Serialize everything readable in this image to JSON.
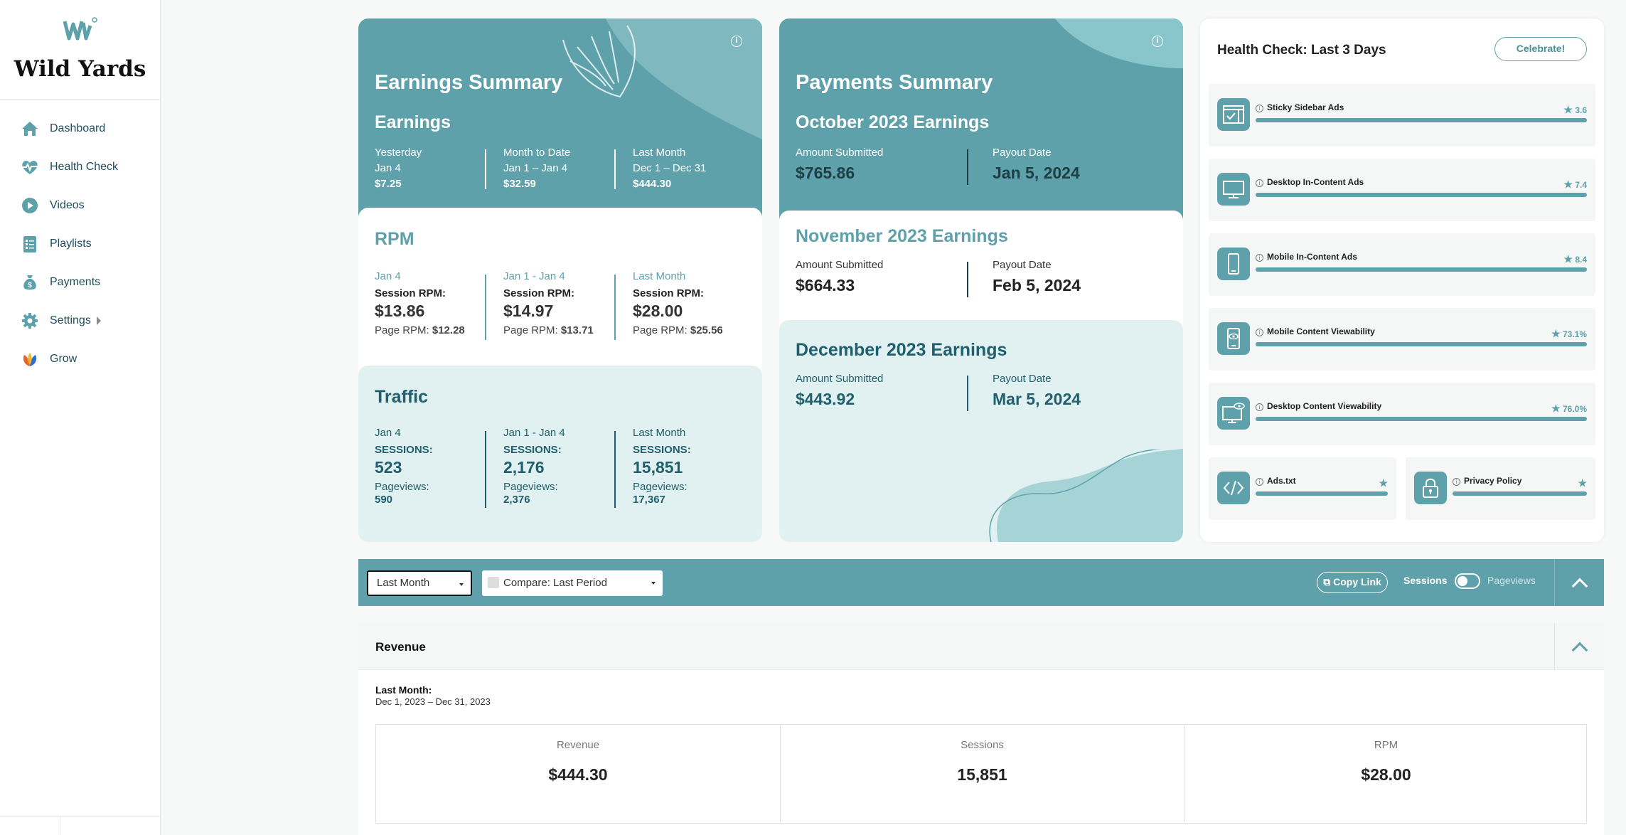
{
  "brand": {
    "name": "Wild Yards"
  },
  "sidebar": {
    "items": [
      {
        "label": "Dashboard",
        "icon": "home-icon"
      },
      {
        "label": "Health Check",
        "icon": "heartbeat-icon"
      },
      {
        "label": "Videos",
        "icon": "play-icon"
      },
      {
        "label": "Playlists",
        "icon": "list-icon"
      },
      {
        "label": "Payments",
        "icon": "money-bag-icon"
      },
      {
        "label": "Settings",
        "icon": "gear-icon"
      },
      {
        "label": "Grow",
        "icon": "grow-icon"
      }
    ]
  },
  "earnings": {
    "title": "Earnings Summary",
    "section": "Earnings",
    "cols": [
      {
        "label": "Yesterday",
        "range": "Jan 4",
        "value": "$7.25"
      },
      {
        "label": "Month to Date",
        "range": "Jan 1 – Jan 4",
        "value": "$32.59"
      },
      {
        "label": "Last Month",
        "range": "Dec 1 – Dec 31",
        "value": "$444.30"
      }
    ]
  },
  "rpm": {
    "title": "RPM",
    "session_label": "Session RPM:",
    "page_label": "Page RPM:",
    "cols": [
      {
        "range": "Jan 4",
        "session": "$13.86",
        "page": "$12.28"
      },
      {
        "range": "Jan 1 - Jan 4",
        "session": "$14.97",
        "page": "$13.71"
      },
      {
        "range": "Last Month",
        "session": "$28.00",
        "page": "$25.56"
      }
    ]
  },
  "traffic": {
    "title": "Traffic",
    "sessions_label": "SESSIONS:",
    "pageviews_label": "Pageviews:",
    "cols": [
      {
        "range": "Jan 4",
        "sessions": "523",
        "pageviews": "590"
      },
      {
        "range": "Jan 1 - Jan 4",
        "sessions": "2,176",
        "pageviews": "2,376"
      },
      {
        "range": "Last Month",
        "sessions": "15,851",
        "pageviews": "17,367"
      }
    ]
  },
  "payments": {
    "title": "Payments Summary",
    "amount_label": "Amount Submitted",
    "date_label": "Payout Date",
    "months": [
      {
        "title": "October 2023 Earnings",
        "amount": "$765.86",
        "date": "Jan 5, 2024"
      },
      {
        "title": "November 2023 Earnings",
        "amount": "$664.33",
        "date": "Feb 5, 2024"
      },
      {
        "title": "December 2023 Earnings",
        "amount": "$443.92",
        "date": "Mar 5, 2024"
      }
    ]
  },
  "health": {
    "title": "Health Check: Last 3 Days",
    "celebrate": "Celebrate!",
    "items": [
      {
        "name": "Sticky Sidebar Ads",
        "score": "3.6",
        "icon": "browser-check-icon"
      },
      {
        "name": "Desktop In-Content Ads",
        "score": "7.4",
        "icon": "desktop-icon"
      },
      {
        "name": "Mobile In-Content Ads",
        "score": "8.4",
        "icon": "mobile-icon"
      },
      {
        "name": "Mobile Content Viewability",
        "score": "73.1%",
        "icon": "mobile-eye-icon"
      },
      {
        "name": "Desktop Content Viewability",
        "score": "76.0%",
        "icon": "desktop-eye-icon"
      }
    ],
    "small": [
      {
        "name": "Ads.txt",
        "icon": "code-icon"
      },
      {
        "name": "Privacy Policy",
        "icon": "lock-icon"
      }
    ]
  },
  "filters": {
    "period": "Last Month",
    "compare": "Compare: Last Period",
    "copy_link": "Copy Link",
    "toggle_left": "Sessions",
    "toggle_right": "Pageviews"
  },
  "revenue": {
    "title": "Revenue",
    "period_label": "Last Month:",
    "period": "Dec 1, 2023 – Dec 31, 2023",
    "stats": [
      {
        "label": "Revenue",
        "value": "$444.30"
      },
      {
        "label": "Sessions",
        "value": "15,851"
      },
      {
        "label": "RPM",
        "value": "$28.00"
      }
    ]
  },
  "colors": {
    "teal": "#5fa1aa",
    "dark_teal": "#1f5f6e",
    "light_teal": "#e1f0f0"
  }
}
